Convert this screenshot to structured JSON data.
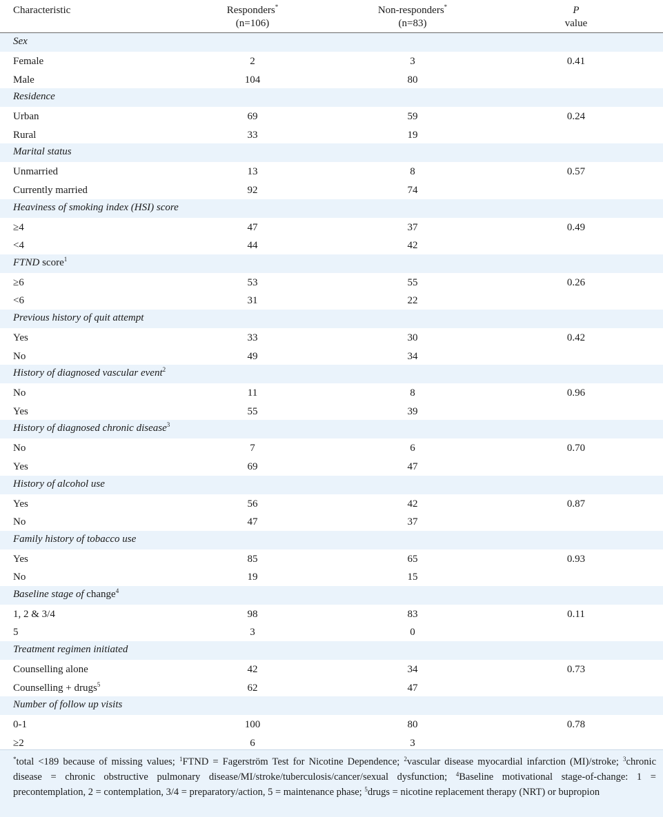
{
  "header": {
    "characteristic": "Characteristic",
    "responders": "Responders",
    "responders_mark": "*",
    "responders_n": "(n=106)",
    "nonresponders": "Non-responders",
    "nonresponders_mark": "*",
    "nonresponders_n": "(n=83)",
    "p_symbol": "P",
    "p_value": "value"
  },
  "sections": [
    {
      "title": "Sex",
      "rows": [
        {
          "label": "Female",
          "responders": "2",
          "nonresponders": "3",
          "p": "0.41"
        },
        {
          "label": "Male",
          "responders": "104",
          "nonresponders": "80",
          "p": ""
        }
      ]
    },
    {
      "title": "Residence",
      "rows": [
        {
          "label": "Urban",
          "responders": "69",
          "nonresponders": "59",
          "p": "0.24"
        },
        {
          "label": "Rural",
          "responders": "33",
          "nonresponders": "19",
          "p": ""
        }
      ]
    },
    {
      "title": "Marital status",
      "rows": [
        {
          "label": "Unmarried",
          "responders": "13",
          "nonresponders": "8",
          "p": "0.57"
        },
        {
          "label": "Currently married",
          "responders": "92",
          "nonresponders": "74",
          "p": ""
        }
      ]
    },
    {
      "title": "Heaviness of smoking index (HSI) score",
      "rows": [
        {
          "label": "≥4",
          "responders": "47",
          "nonresponders": "37",
          "p": "0.49"
        },
        {
          "label": "<4",
          "responders": "44",
          "nonresponders": "42",
          "p": ""
        }
      ]
    },
    {
      "title": "FTND",
      "title_upright": " score",
      "title_sup": "1",
      "rows": [
        {
          "label": "≥6",
          "responders": "53",
          "nonresponders": "55",
          "p": "0.26"
        },
        {
          "label": "<6",
          "responders": "31",
          "nonresponders": "22",
          "p": ""
        }
      ]
    },
    {
      "title": "Previous history of quit attempt",
      "rows": [
        {
          "label": "Yes",
          "responders": "33",
          "nonresponders": "30",
          "p": "0.42"
        },
        {
          "label": "No",
          "responders": "49",
          "nonresponders": "34",
          "p": ""
        }
      ]
    },
    {
      "title": "History of diagnosed vascular event",
      "title_sup": "2",
      "rows": [
        {
          "label": "No",
          "responders": "11",
          "nonresponders": "8",
          "p": "0.96"
        },
        {
          "label": "Yes",
          "responders": "55",
          "nonresponders": "39",
          "p": ""
        }
      ]
    },
    {
      "title": "History of diagnosed chronic disease",
      "title_sup": "3",
      "rows": [
        {
          "label": "No",
          "responders": "7",
          "nonresponders": "6",
          "p": "0.70"
        },
        {
          "label": "Yes",
          "responders": "69",
          "nonresponders": "47",
          "p": ""
        }
      ]
    },
    {
      "title": "History of alcohol use",
      "rows": [
        {
          "label": "Yes",
          "responders": "56",
          "nonresponders": "42",
          "p": "0.87"
        },
        {
          "label": "No",
          "responders": "47",
          "nonresponders": "37",
          "p": ""
        }
      ]
    },
    {
      "title": "Family history of tobacco use",
      "rows": [
        {
          "label": "Yes",
          "responders": "85",
          "nonresponders": "65",
          "p": "0.93"
        },
        {
          "label": "No",
          "responders": "19",
          "nonresponders": "15",
          "p": ""
        }
      ]
    },
    {
      "title": "Baseline stage of",
      "title_upright": " change",
      "title_sup": "4",
      "rows": [
        {
          "label": "1, 2 & 3/4",
          "responders": "98",
          "nonresponders": "83",
          "p": "0.11"
        },
        {
          "label": "5",
          "responders": "3",
          "nonresponders": "0",
          "p": ""
        }
      ]
    },
    {
      "title": "Treatment regimen initiated",
      "rows": [
        {
          "label": "Counselling alone",
          "responders": "42",
          "nonresponders": "34",
          "p": "0.73"
        },
        {
          "label": "Counselling + drugs",
          "label_sup": "5",
          "responders": "62",
          "nonresponders": "47",
          "p": ""
        }
      ]
    },
    {
      "title": "Number of follow up visits",
      "rows": [
        {
          "label": "0-1",
          "responders": "100",
          "nonresponders": "80",
          "p": "0.78"
        },
        {
          "label": "≥2",
          "responders": "6",
          "nonresponders": "3",
          "p": ""
        }
      ]
    }
  ],
  "footnote": [
    {
      "sup": "*",
      "text": "total <189 because of missing values; "
    },
    {
      "sup": "1",
      "text": "FTND = Fagerström Test for Nicotine Dependence; "
    },
    {
      "sup": "2",
      "text": "vascular disease myocardial infarction (MI)/stroke; "
    },
    {
      "sup": "3",
      "text": "chronic disease = chronic obstructive pulmonary disease/MI/stroke/tuberculosis/cancer/sexual dysfunction; "
    },
    {
      "sup": "4",
      "text": "Baseline motivational stage-of-change: 1 = precontemplation, 2 = contemplation, 3/4 = preparatory/action, 5 = maintenance phase; "
    },
    {
      "sup": "5",
      "text": "drugs = nicotine replacement therapy (NRT) or bupropion"
    }
  ]
}
